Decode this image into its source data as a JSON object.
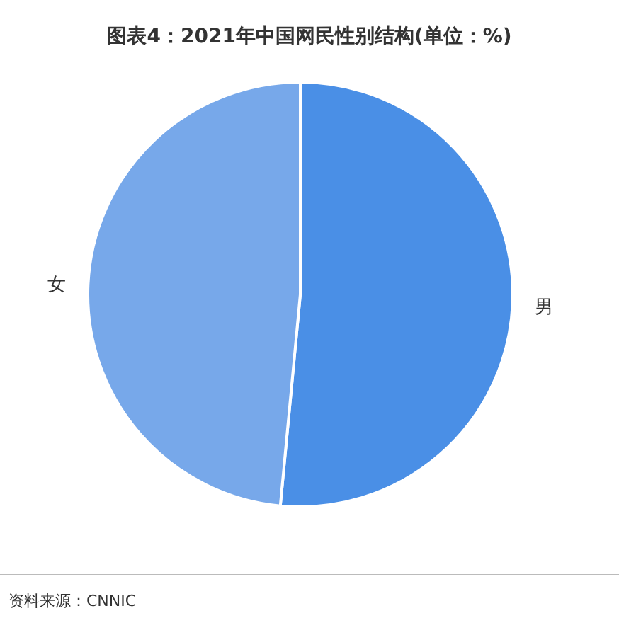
{
  "chart_data": {
    "type": "pie",
    "title": "图表4：2021年中国网民性别结构(单位：%)",
    "categories": [
      "男",
      "女"
    ],
    "values": [
      51.5,
      48.5
    ],
    "colors": [
      "#4a8fe6",
      "#77a8ea"
    ],
    "annotations": [
      "资料来源：CNNIC"
    ]
  }
}
